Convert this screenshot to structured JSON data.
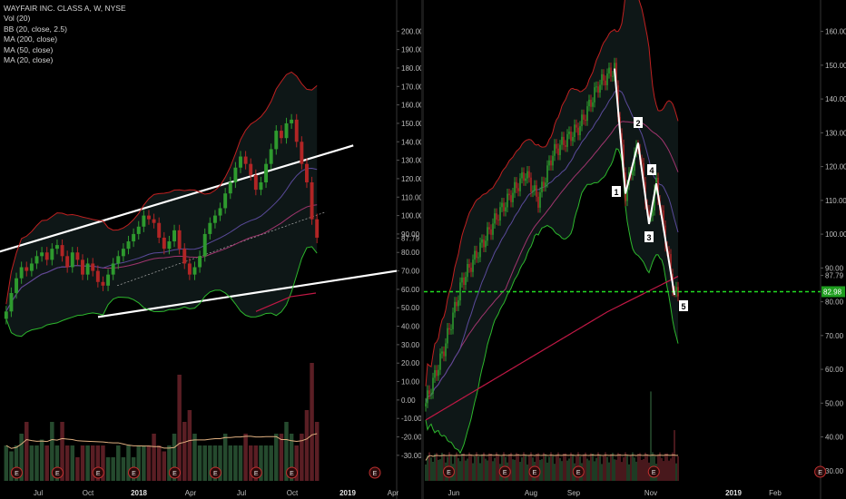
{
  "legend": {
    "title": "WAYFAIR INC. CLASS A, W, NYSE",
    "indicators": [
      "Vol (20)",
      "BB (20, close, 2.5)",
      "MA (200, close)",
      "MA (50, close)",
      "MA (20, close)"
    ]
  },
  "colors": {
    "up": "#2e9a2e",
    "down": "#b02525",
    "bb_upper": "#c02020",
    "bb_lower": "#2db82d",
    "ma200": "#c01845",
    "ma50": "#a0356e",
    "ma20": "#5a4a9a",
    "vol_ma": "#e0b080",
    "trendline": "#ffffff",
    "support": "#22dd22",
    "price_tag": "#1f9e1f"
  },
  "chart_data": [
    {
      "type": "candlestick",
      "title": "WAYFAIR INC. CLASS A, W, NYSE",
      "timeframe": "weekly",
      "x_ticks": [
        "Jul",
        "Oct",
        "2018",
        "Apr",
        "Jul",
        "Oct",
        "2019",
        "Apr"
      ],
      "y_ticks": [
        "200.00",
        "190.00",
        "180.00",
        "170.00",
        "160.00",
        "150.00",
        "140.00",
        "130.00",
        "120.00",
        "110.00",
        "100.00",
        "90.00",
        "87.79",
        "80.00",
        "70.00",
        "60.00",
        "50.00",
        "40.00",
        "30.00",
        "20.00",
        "10.00",
        "0.00",
        "-10.00",
        "-20.00",
        "-30.00"
      ],
      "ylim": [
        -34,
        209
      ],
      "closes": [
        48,
        58,
        66,
        72,
        70,
        74,
        78,
        80,
        76,
        82,
        84,
        78,
        72,
        80,
        76,
        68,
        74,
        70,
        64,
        62,
        68,
        74,
        78,
        82,
        86,
        90,
        94,
        100,
        98,
        96,
        88,
        82,
        86,
        92,
        82,
        74,
        68,
        72,
        78,
        90,
        96,
        100,
        104,
        112,
        118,
        126,
        132,
        128,
        122,
        114,
        118,
        128,
        136,
        146,
        142,
        150,
        152,
        140,
        128,
        118,
        98,
        88
      ],
      "volumes": [
        0.3,
        0.25,
        0.3,
        0.4,
        0.5,
        0.3,
        0.3,
        0.35,
        0.3,
        0.5,
        0.3,
        0.5,
        0.3,
        0.3,
        0.2,
        0.3,
        0.3,
        0.3,
        0.3,
        0.3,
        0.2,
        0.2,
        0.3,
        0.2,
        0.3,
        0.2,
        0.3,
        0.3,
        0.3,
        0.4,
        0.3,
        0.25,
        0.3,
        0.4,
        0.9,
        0.5,
        0.6,
        0.4,
        0.3,
        0.3,
        0.3,
        0.3,
        0.3,
        0.4,
        0.3,
        0.3,
        0.3,
        0.4,
        0.3,
        0.3,
        0.3,
        0.3,
        0.3,
        0.4,
        0.4,
        0.5,
        0.4,
        0.3,
        0.4,
        0.6,
        1.0,
        0.5
      ],
      "annotations": {
        "trendline_upper": [
          [
            0,
            80
          ],
          [
            61,
            138
          ]
        ],
        "trendline_lower": [
          [
            0,
            45
          ],
          [
            61,
            70
          ]
        ],
        "channel_projection": [
          [
            20,
            62
          ],
          [
            61,
            102
          ]
        ],
        "earnings_markers": [
          "E",
          "E",
          "E",
          "E",
          "E",
          "E",
          "E",
          "E"
        ],
        "earnings_x": [
          1,
          9,
          17,
          24,
          32,
          40,
          48,
          55
        ],
        "future_earnings_marker": "E"
      }
    },
    {
      "type": "candlestick",
      "title": "WAYFAIR INC. CLASS A, W, NYSE",
      "timeframe": "daily",
      "x_ticks": [
        "Jun",
        "Aug",
        "Sep",
        "Nov",
        "2019",
        "Feb"
      ],
      "y_ticks": [
        "160.00",
        "150.00",
        "140.00",
        "130.00",
        "120.00",
        "110.00",
        "100.00",
        "90.00",
        "87.79",
        "80.00",
        "70.00",
        "60.00",
        "50.00",
        "40.00",
        "30.00"
      ],
      "ylim": [
        27,
        165
      ],
      "price_label": "82.98",
      "support_level": 82.98,
      "wave_labels": [
        "1",
        "2",
        "3",
        "4",
        "5"
      ],
      "wave_points": [
        [
          104,
          149
        ],
        [
          110,
          112
        ],
        [
          117,
          127
        ],
        [
          123,
          103
        ],
        [
          127,
          115
        ],
        [
          137,
          82
        ]
      ],
      "earnings_markers": [
        "E",
        "E",
        "E",
        "E",
        "E",
        "E"
      ],
      "earnings_x": [
        8,
        40,
        57,
        82,
        125,
        220
      ]
    }
  ]
}
